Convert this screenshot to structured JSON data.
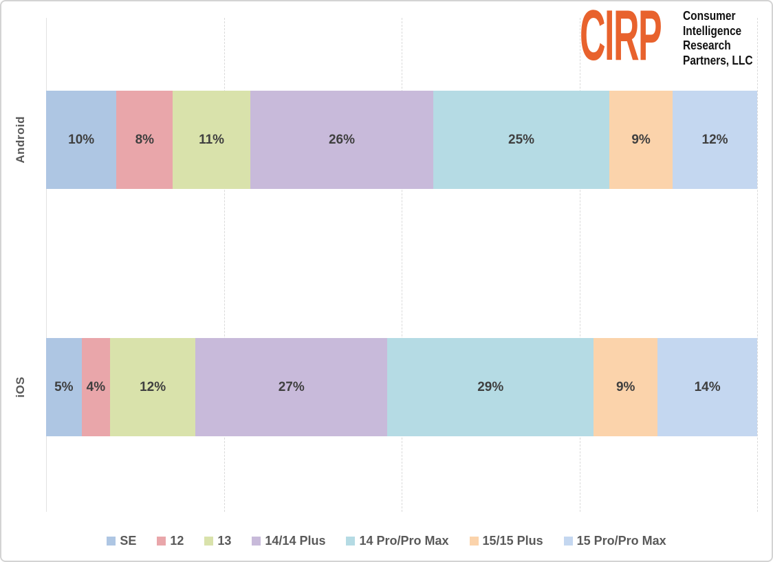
{
  "logo": {
    "acronym": "CIRP",
    "lines": [
      "Consumer",
      "Intelligence",
      "Research",
      "Partners, LLC"
    ],
    "orange": "#E8622D"
  },
  "chart_data": {
    "type": "bar",
    "variant": "horizontal-100%-stacked",
    "title": "",
    "categories": [
      "Android",
      "iOS"
    ],
    "series": [
      {
        "name": "SE",
        "color": "#AEC6E3",
        "values": [
          10,
          5
        ]
      },
      {
        "name": "12",
        "color": "#E9A6AA",
        "values": [
          8,
          4
        ]
      },
      {
        "name": "13",
        "color": "#D9E2AB",
        "values": [
          11,
          12
        ]
      },
      {
        "name": "14/14 Plus",
        "color": "#C8BADA",
        "values": [
          26,
          27
        ]
      },
      {
        "name": "14 Pro/Pro Max",
        "color": "#B5DBE4",
        "values": [
          25,
          29
        ]
      },
      {
        "name": "15/15 Plus",
        "color": "#FBD3AB",
        "values": [
          9,
          9
        ]
      },
      {
        "name": "15 Pro/Pro Max",
        "color": "#C4D7F0",
        "values": [
          12,
          14
        ]
      }
    ],
    "labels": [
      [
        "10%",
        "8%",
        "11%",
        "26%",
        "25%",
        "9%",
        "12%"
      ],
      [
        "5%",
        "4%",
        "12%",
        "27%",
        "29%",
        "9%",
        "14%"
      ]
    ],
    "xlim": [
      0,
      100
    ],
    "gridlines": {
      "x_percent": [
        0,
        25,
        50,
        75,
        100
      ],
      "style": "dashed"
    },
    "legend_position": "bottom",
    "label_color": "#3f3f3f",
    "axis_text_color": "#595959"
  }
}
